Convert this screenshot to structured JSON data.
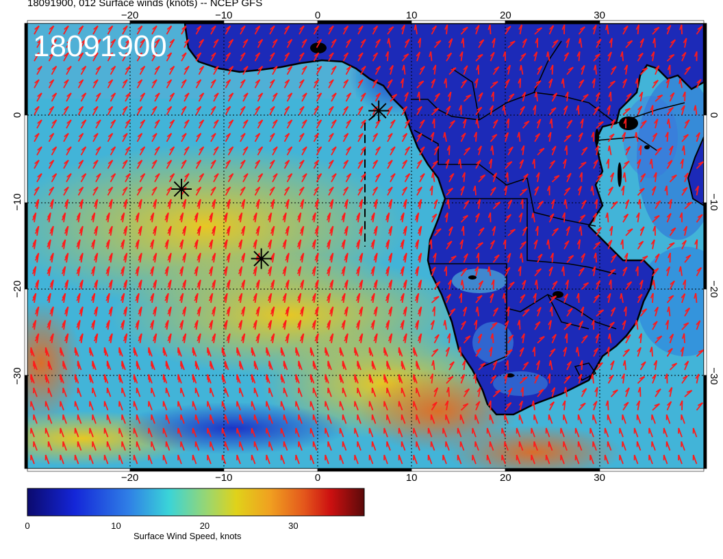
{
  "title": "18091900, 012 Surface winds (knots) -- NCEP GFS",
  "stamp": "18091900",
  "lon_ticks": [
    "−20",
    "−10",
    "0",
    "10",
    "20",
    "30"
  ],
  "lat_ticks": [
    "0",
    "−10",
    "−20",
    "−30"
  ],
  "colorbar": {
    "label": "Surface Wind Speed, knots",
    "ticks": [
      "0",
      "10",
      "20",
      "30"
    ],
    "range": [
      0,
      38
    ]
  },
  "markers": [
    {
      "name": "storm-marker-1",
      "lon": 6.5,
      "lat": 0.5
    },
    {
      "name": "storm-marker-2",
      "lon": -14.5,
      "lat": -8.5
    },
    {
      "name": "storm-marker-3",
      "lon": -6,
      "lat": -16.5
    }
  ],
  "colors": {
    "barb": "#ff1a1a",
    "coast": "#000000",
    "ocean_calm": "#3e8fe0",
    "ocean_strong": "#f2b81c"
  }
}
